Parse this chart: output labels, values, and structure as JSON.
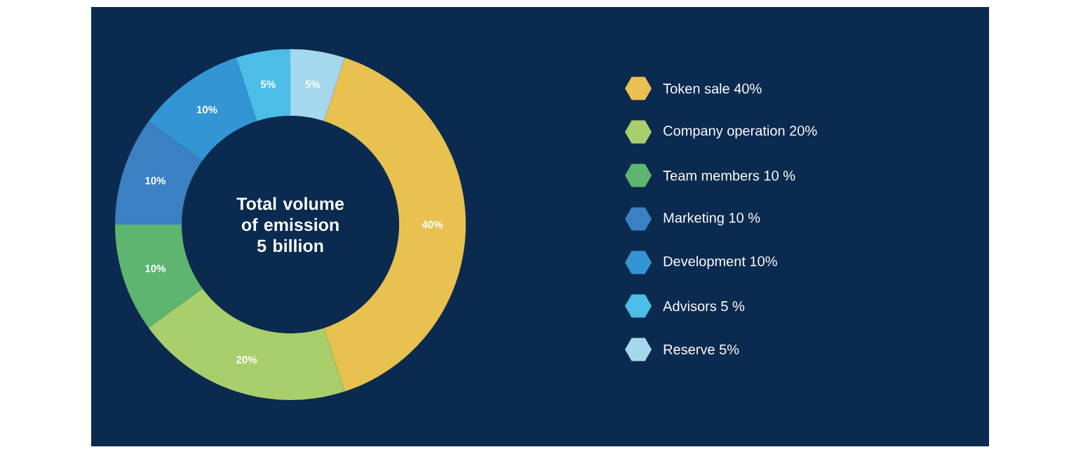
{
  "chart_data": {
    "type": "donut",
    "title": "Total volume of emission 5 billion",
    "categories": [
      "Token sale 40%",
      "Company operation 20%",
      "Team members 10 %",
      "Marketing 10 %",
      "Development 10%",
      "Advisors 5 %",
      "Reserve 5%"
    ],
    "values": [
      40,
      20,
      10,
      10,
      10,
      5,
      5
    ],
    "value_labels": [
      "40%",
      "20%",
      "10%",
      "10%",
      "10%",
      "5%",
      "5%"
    ],
    "colors": [
      "#e8c150",
      "#a8cf6b",
      "#5db56f",
      "#3a80c2",
      "#3495d5",
      "#4cbde6",
      "#a5d8ec"
    ],
    "legend": "right"
  }
}
